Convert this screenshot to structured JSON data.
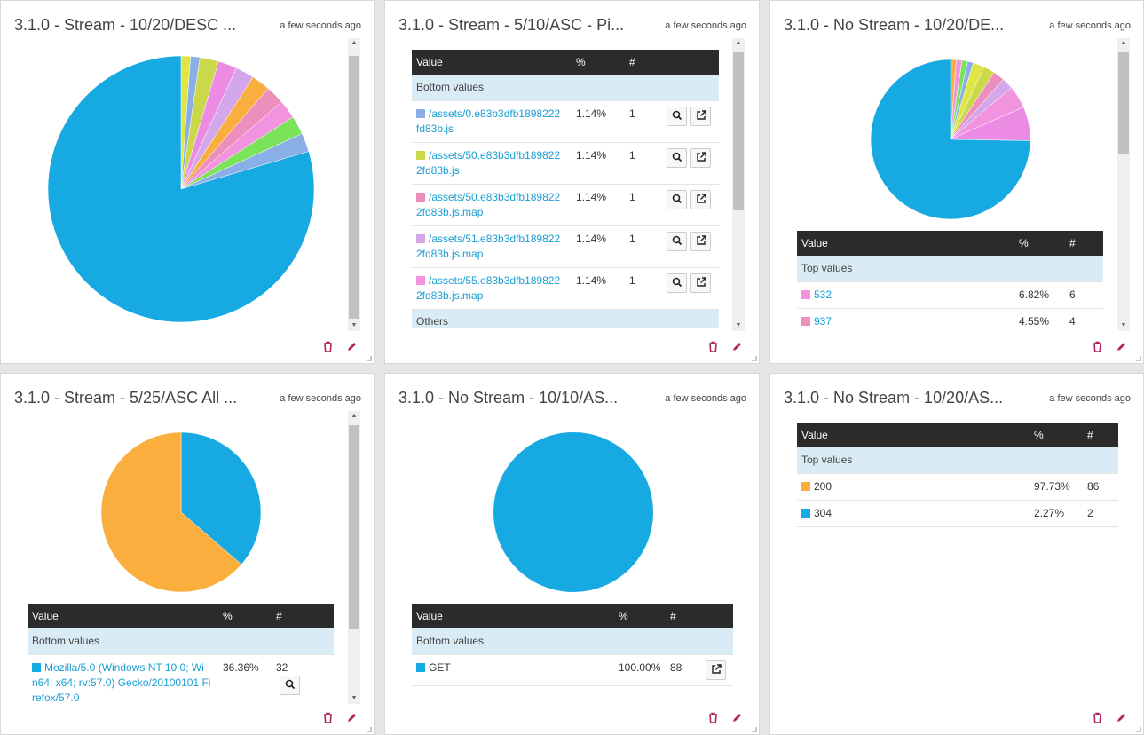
{
  "widgets": [
    {
      "title": "3.1.0 - Stream - 10/20/DESC ...",
      "timestamp": "a few seconds ago",
      "chart_data": {
        "type": "pie",
        "title": "",
        "slices": [
          {
            "value": 1.14,
            "color": "#dfe545"
          },
          {
            "value": 1.14,
            "color": "#8aafe6"
          },
          {
            "value": 2.27,
            "color": "#cad84a"
          },
          {
            "value": 2.27,
            "color": "#ec8be4"
          },
          {
            "value": 2.27,
            "color": "#d3a7ea"
          },
          {
            "value": 2.27,
            "color": "#faae3e"
          },
          {
            "value": 2.27,
            "color": "#ed8fbc"
          },
          {
            "value": 2.27,
            "color": "#f193df"
          },
          {
            "value": 2.27,
            "color": "#7be35a"
          },
          {
            "value": 2.27,
            "color": "#8aafe6"
          },
          {
            "value": 79.6,
            "color": "#16a9e2"
          }
        ]
      }
    },
    {
      "title": "3.1.0 - Stream - 5/10/ASC - Pi...",
      "timestamp": "a few seconds ago",
      "table": {
        "headers": [
          "Value",
          "%",
          "#"
        ],
        "group": "Bottom values",
        "rows": [
          {
            "value": "/assets/0.e83b3dfb1898222fd83b.js",
            "line1": "/assets/0.e83b3dfb1898222",
            "line2": "fd83b.js",
            "pct": "1.14%",
            "count": "1",
            "color": "#8aafe6"
          },
          {
            "value": "/assets/50.e83b3dfb1898222fd83b.js",
            "line1": "/assets/50.e83b3dfb189822",
            "line2": "2fd83b.js",
            "pct": "1.14%",
            "count": "1",
            "color": "#cad84a"
          },
          {
            "value": "/assets/50.e83b3dfb1898222fd83b.js.map",
            "line1": "/assets/50.e83b3dfb189822",
            "line2": "2fd83b.js.map",
            "pct": "1.14%",
            "count": "1",
            "color": "#ed8fbc"
          },
          {
            "value": "/assets/51.e83b3dfb1898222fd83b.js.map",
            "line1": "/assets/51.e83b3dfb189822",
            "line2": "2fd83b.js.map",
            "pct": "1.14%",
            "count": "1",
            "color": "#d3a7ea"
          },
          {
            "value": "/assets/55.e83b3dfb1898222fd83b.js.map",
            "line1": "/assets/55.e83b3dfb189822",
            "line2": "2fd83b.js.map",
            "pct": "1.14%",
            "count": "1",
            "color": "#f193df"
          }
        ],
        "group2": "Others"
      }
    },
    {
      "title": "3.1.0 - No Stream - 10/20/DE...",
      "timestamp": "a few seconds ago",
      "chart_data": {
        "type": "pie",
        "title": "",
        "slices": [
          {
            "value": 1.14,
            "color": "#faae3e"
          },
          {
            "value": 1.14,
            "color": "#f193df"
          },
          {
            "value": 1.14,
            "color": "#7be35a"
          },
          {
            "value": 1.14,
            "color": "#8aafe6"
          },
          {
            "value": 2.27,
            "color": "#dfe545"
          },
          {
            "value": 2.27,
            "color": "#cad84a"
          },
          {
            "value": 2.27,
            "color": "#ed8fbc"
          },
          {
            "value": 2.27,
            "color": "#d3a7ea"
          },
          {
            "value": 4.55,
            "color": "#f193df"
          },
          {
            "value": 6.82,
            "color": "#ec8be4"
          },
          {
            "value": 74.0,
            "color": "#16a9e2"
          }
        ]
      },
      "table": {
        "headers": [
          "Value",
          "%",
          "#"
        ],
        "group": "Top values",
        "rows": [
          {
            "value": "532",
            "pct": "6.82%",
            "count": "6",
            "color": "#f193df"
          },
          {
            "value": "937",
            "pct": "4.55%",
            "count": "4",
            "color": "#ed8fbc"
          }
        ]
      }
    },
    {
      "title": "3.1.0 - Stream - 5/25/ASC All ...",
      "timestamp": "a few seconds ago",
      "chart_data": {
        "type": "pie",
        "title": "",
        "slices": [
          {
            "value": 36.36,
            "color": "#16a9e2"
          },
          {
            "value": 63.64,
            "color": "#faae3e"
          }
        ]
      },
      "table": {
        "headers": [
          "Value",
          "%",
          "#"
        ],
        "group": "Bottom values",
        "rows": [
          {
            "value": "Mozilla/5.0 (Windows NT 10.0; Win64; x64; rv:57.0) Gecko/20100101 Firefox/57.0",
            "line1": "Mozilla/5.0 (Windows NT 10.0; Wi",
            "line2": "n64; x64; rv:57.0) Gecko/20100101 Fi",
            "line3": "refox/57.0",
            "pct": "36.36%",
            "count": "32",
            "color": "#16a9e2"
          }
        ]
      }
    },
    {
      "title": "3.1.0 - No Stream - 10/10/AS...",
      "timestamp": "a few seconds ago",
      "chart_data": {
        "type": "pie",
        "title": "",
        "slices": [
          {
            "value": 100,
            "color": "#16a9e2"
          }
        ]
      },
      "table": {
        "headers": [
          "Value",
          "%",
          "#"
        ],
        "group": "Bottom values",
        "rows": [
          {
            "value": "GET",
            "pct": "100.00%",
            "count": "88",
            "color": "#16a9e2"
          }
        ]
      }
    },
    {
      "title": "3.1.0 - No Stream - 10/20/AS...",
      "timestamp": "a few seconds ago",
      "table": {
        "headers": [
          "Value",
          "%",
          "#"
        ],
        "group": "Top values",
        "rows": [
          {
            "value": "200",
            "pct": "97.73%",
            "count": "86",
            "color": "#faae3e"
          },
          {
            "value": "304",
            "pct": "2.27%",
            "count": "2",
            "color": "#16a9e2"
          }
        ]
      }
    }
  ],
  "icons": {
    "delete": "trash-icon",
    "edit": "pencil-icon",
    "zoom": "magnifier-icon",
    "open": "external-link-icon"
  },
  "colors": {
    "header_bg": "#2b2b2b",
    "group_bg": "#d9ebf4",
    "link": "#1a9ed4",
    "action": "#b0245f"
  }
}
